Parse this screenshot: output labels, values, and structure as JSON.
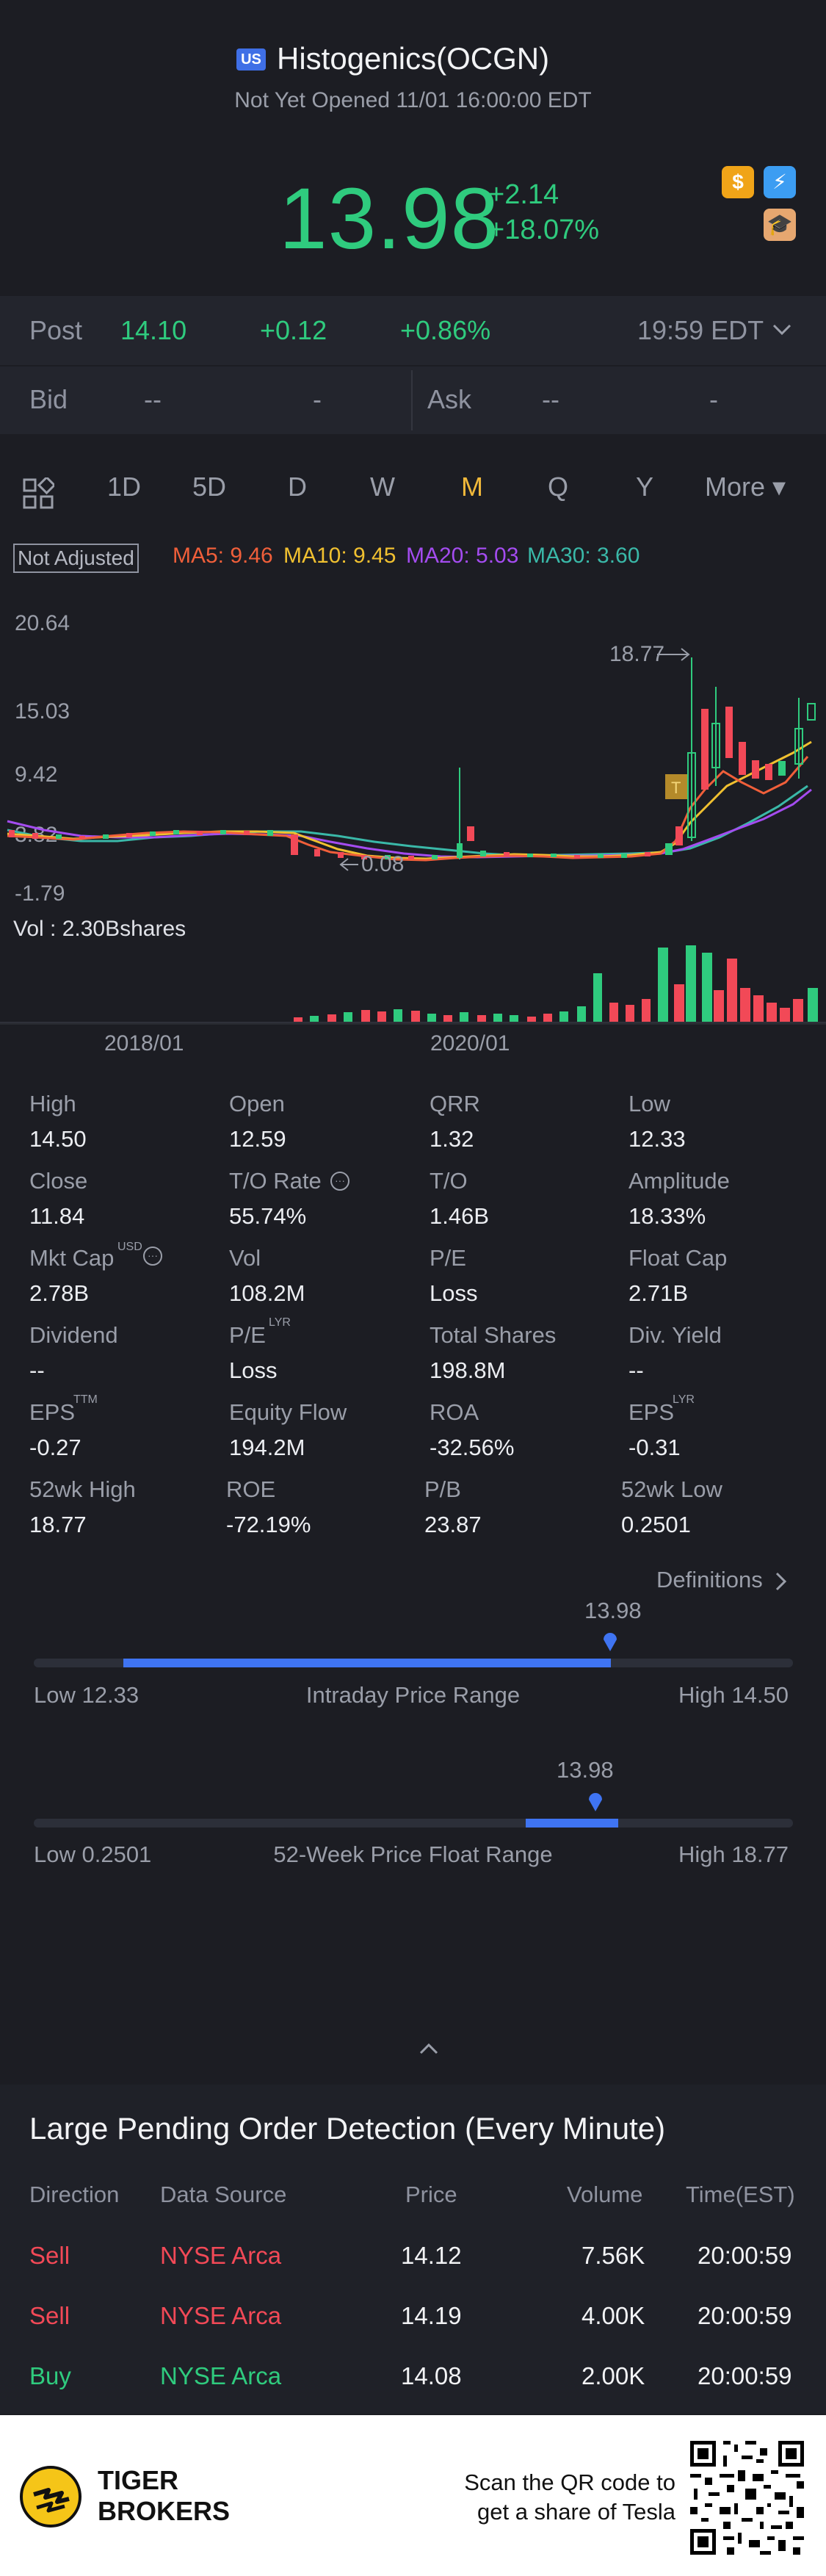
{
  "header": {
    "flag": "US",
    "name": "Histogenics(OCGN)",
    "status": "Not Yet Opened 11/01 16:00:00 EDT",
    "price": "13.98",
    "change": "+2.14",
    "change_pct": "+18.07%",
    "icons": [
      "dollar-icon",
      "flash-icon",
      "education-icon"
    ],
    "icon_dollar_glyph": "$",
    "icon_flash_glyph": "⚡",
    "icon_edu_glyph": "🎓"
  },
  "post": {
    "label": "Post",
    "price": "14.10",
    "change": "+0.12",
    "change_pct": "+0.86%",
    "time": "19:59 EDT"
  },
  "bidask": {
    "bid_label": "Bid",
    "bid_price": "--",
    "bid_size": "-",
    "ask_label": "Ask",
    "ask_price": "--",
    "ask_size": "-"
  },
  "tabs": [
    "1D",
    "5D",
    "D",
    "W",
    "M",
    "Q",
    "Y",
    "More ▾"
  ],
  "active_tab": "M",
  "ma": {
    "not_adjusted": "Not Adjusted",
    "ma5": "MA5: 9.46",
    "ma10": "MA10: 9.45",
    "ma20": "MA20: 5.03",
    "ma30": "MA30: 3.60",
    "colors": {
      "ma5": "#f05f3a",
      "ma10": "#f0c030",
      "ma20": "#a44cf0",
      "ma30": "#3ab8a8"
    }
  },
  "chart": {
    "y_top": "20.64",
    "y_mid": "15.03",
    "y_low": "9.42",
    "y_3": "3.82",
    "y_bottom": "-1.79",
    "high_label": "18.77",
    "low_label": "0.08",
    "vol_label": "Vol  : 2.30Bshares",
    "x_labels": [
      "2018/01",
      "2020/01"
    ],
    "marker_letter": "T"
  },
  "stats": [
    {
      "label": "High",
      "value": "14.50"
    },
    {
      "label": "Open",
      "value": "12.59"
    },
    {
      "label": "QRR",
      "value": "1.32"
    },
    {
      "label": "Low",
      "value": "12.33"
    },
    {
      "label": "Close",
      "value": "11.84"
    },
    {
      "label": "T/O Rate",
      "value": "55.74%"
    },
    {
      "label": "T/O",
      "value": "1.46B"
    },
    {
      "label": "Amplitude",
      "value": "18.33%"
    },
    {
      "label": "Mkt Cap",
      "value": "2.78B"
    },
    {
      "label": "Vol",
      "value": "108.2M"
    },
    {
      "label": "P/E",
      "value": "Loss"
    },
    {
      "label": "Float Cap",
      "value": "2.71B"
    },
    {
      "label": "Dividend",
      "value": "--"
    },
    {
      "label": "P/E",
      "value": "Loss"
    },
    {
      "label": "Total Shares",
      "value": "198.8M"
    },
    {
      "label": "Div. Yield",
      "value": "--"
    },
    {
      "label": "EPS",
      "value": "-0.27"
    },
    {
      "label": "Equity Flow",
      "value": "194.2M"
    },
    {
      "label": "ROA",
      "value": "-32.56%"
    },
    {
      "label": "EPS",
      "value": "-0.31"
    },
    {
      "label": "52wk High",
      "value": "18.77"
    },
    {
      "label": "ROE",
      "value": "-72.19%"
    },
    {
      "label": "P/B",
      "value": "23.87"
    },
    {
      "label": "52wk Low",
      "value": "0.2501"
    }
  ],
  "stat_sups": {
    "usd": "USD",
    "lyr": "LYR",
    "ttm": "TTM",
    "lyr2": "LYR",
    "info": "···"
  },
  "definitions": "Definitions",
  "intraday": {
    "current": "13.98",
    "low": "Low 12.33",
    "title": "Intraday Price Range",
    "high": "High 14.50",
    "position": 0.76
  },
  "week52": {
    "current": "13.98",
    "low": "Low 0.2501",
    "title": "52-Week Price Float Range",
    "high": "High 18.77",
    "position": 0.74
  },
  "pending": {
    "title": "Large Pending Order Detection (Every Minute)",
    "headers": [
      "Direction",
      "Data Source",
      "Price",
      "Volume",
      "Time(EST)"
    ],
    "rows": [
      {
        "direction": "Sell",
        "source": "NYSE Arca",
        "price": "14.12",
        "volume": "7.56K",
        "time": "20:00:59"
      },
      {
        "direction": "Sell",
        "source": "NYSE Arca",
        "price": "14.19",
        "volume": "4.00K",
        "time": "20:00:59"
      },
      {
        "direction": "Buy",
        "source": "NYSE Arca",
        "price": "14.08",
        "volume": "2.00K",
        "time": "20:00:59"
      }
    ]
  },
  "footer": {
    "brand_line1": "TIGER",
    "brand_line2": "BROKERS",
    "qr_text_1": "Scan the QR code to",
    "qr_text_2": "get a share of Tesla"
  }
}
